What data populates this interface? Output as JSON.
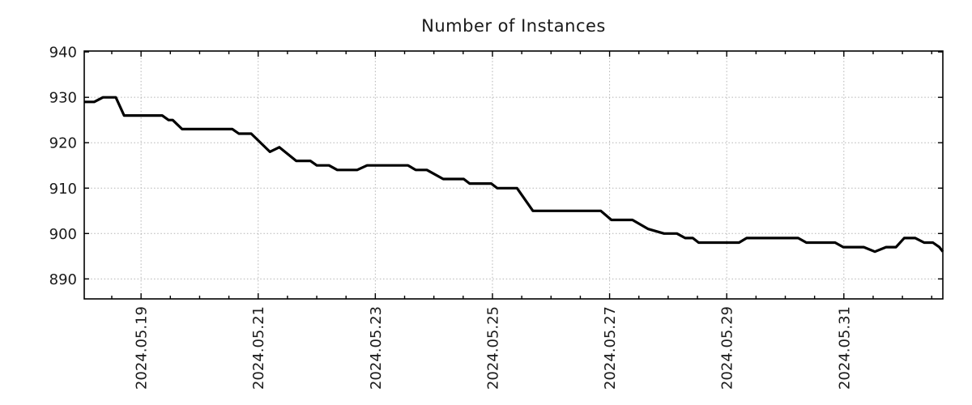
{
  "page": {
    "background": "#ffffff"
  },
  "chart_data": {
    "type": "line",
    "title": "Number of Instances",
    "legend": "none",
    "grid": "dotted",
    "x_axis": {
      "tick_labels": [
        "2024.05.19",
        "2024.05.21",
        "2024.05.23",
        "2024.05.25",
        "2024.05.27",
        "2024.05.29",
        "2024.05.31"
      ],
      "tick_positions_days": [
        0.97,
        2.97,
        4.97,
        6.97,
        8.97,
        10.97,
        12.97
      ],
      "minor_tick_interval_days": 0.5,
      "minor_tick_start_day": 0.47,
      "range_days": [
        0,
        14.66
      ]
    },
    "y_axis": {
      "ticks": [
        890,
        900,
        910,
        920,
        930,
        940
      ],
      "range": [
        885.6,
        940.2
      ]
    },
    "colors": {
      "line": "#000000",
      "grid": "#b3b3b3",
      "axis": "#000000",
      "text": "#1a1a1a"
    },
    "series": [
      {
        "name": "Number of Instances",
        "points": [
          [
            0.0,
            929
          ],
          [
            0.17,
            929
          ],
          [
            0.32,
            930
          ],
          [
            0.54,
            930
          ],
          [
            0.68,
            926
          ],
          [
            1.33,
            926
          ],
          [
            1.44,
            925
          ],
          [
            1.51,
            925
          ],
          [
            1.67,
            923
          ],
          [
            2.53,
            923
          ],
          [
            2.64,
            922
          ],
          [
            2.85,
            922
          ],
          [
            3.17,
            918
          ],
          [
            3.33,
            919
          ],
          [
            3.62,
            916
          ],
          [
            3.86,
            916
          ],
          [
            3.97,
            915
          ],
          [
            4.18,
            915
          ],
          [
            4.32,
            914
          ],
          [
            4.66,
            914
          ],
          [
            4.83,
            915
          ],
          [
            5.53,
            915
          ],
          [
            5.66,
            914
          ],
          [
            5.85,
            914
          ],
          [
            6.13,
            912
          ],
          [
            6.48,
            912
          ],
          [
            6.58,
            911
          ],
          [
            6.95,
            911
          ],
          [
            7.05,
            910
          ],
          [
            7.39,
            910
          ],
          [
            7.66,
            905
          ],
          [
            8.82,
            905
          ],
          [
            9.0,
            903
          ],
          [
            9.36,
            903
          ],
          [
            9.63,
            901
          ],
          [
            9.9,
            900
          ],
          [
            10.12,
            900
          ],
          [
            10.26,
            899
          ],
          [
            10.39,
            899
          ],
          [
            10.49,
            898
          ],
          [
            11.18,
            898
          ],
          [
            11.31,
            899
          ],
          [
            12.19,
            899
          ],
          [
            12.33,
            898
          ],
          [
            12.82,
            898
          ],
          [
            12.96,
            897
          ],
          [
            13.31,
            897
          ],
          [
            13.5,
            896
          ],
          [
            13.69,
            897
          ],
          [
            13.86,
            897
          ],
          [
            14.0,
            899
          ],
          [
            14.19,
            899
          ],
          [
            14.34,
            898
          ],
          [
            14.49,
            898
          ],
          [
            14.6,
            897
          ],
          [
            14.66,
            896
          ]
        ]
      }
    ]
  }
}
